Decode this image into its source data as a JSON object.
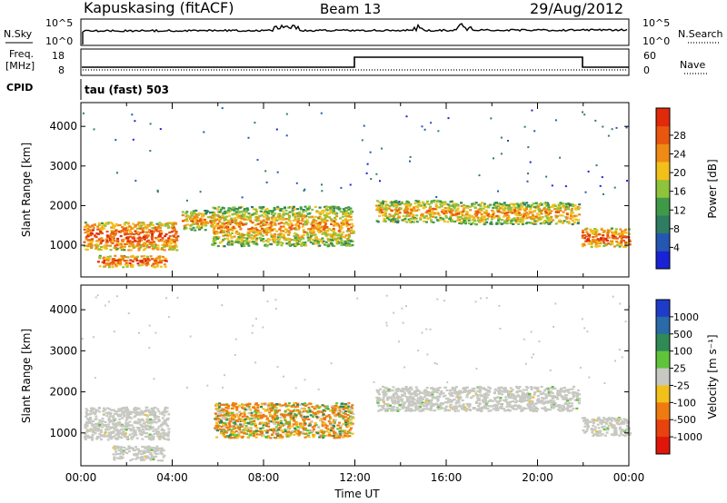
{
  "header": {
    "station": "Kapuskasing (fitACF)",
    "beam": "Beam 13",
    "date": "29/Aug/2012"
  },
  "strips": {
    "noise": {
      "left_label": "N.Sky",
      "left_ticks": [
        "10^5",
        "10^0"
      ],
      "right_label": "N.Search",
      "right_ticks": [
        "10^5",
        "10^0"
      ]
    },
    "freq": {
      "left_label_line1": "Freq.",
      "left_label_line2": "[MHz]",
      "left_ticks": [
        "18",
        "8"
      ],
      "right_label": "Nave",
      "right_ticks": [
        "60",
        "0"
      ]
    },
    "cpid": {
      "label": "CPID",
      "text": "tau (fast) 503"
    }
  },
  "chart_data": [
    {
      "type": "heatmap",
      "panel": "power",
      "ylabel": "Slant Range [km]",
      "xlabel": "",
      "ylim": [
        200,
        4600
      ],
      "xlim_hours": [
        0,
        24
      ],
      "y_ticks": [
        1000,
        2000,
        3000,
        4000
      ],
      "colorbar": {
        "label": "Power [dB]",
        "ticks": [
          "4",
          "8",
          "12",
          "16",
          "20",
          "24",
          "28"
        ],
        "colors": [
          "#1a22d6",
          "#2456b3",
          "#2f7c62",
          "#3f9a48",
          "#8fc33b",
          "#f2c01b",
          "#ef8a14",
          "#e8560f",
          "#e02a0a"
        ]
      },
      "regions": [
        {
          "x": [
            0.1,
            4.2
          ],
          "y": [
            900,
            1600
          ],
          "level": "high"
        },
        {
          "x": [
            0.7,
            3.7
          ],
          "y": [
            470,
            760
          ],
          "level": "high"
        },
        {
          "x": [
            4.4,
            5.7
          ],
          "y": [
            1400,
            1900
          ],
          "level": "medium"
        },
        {
          "x": [
            5.7,
            11.9
          ],
          "y": [
            1000,
            2000
          ],
          "level": "medium"
        },
        {
          "x": [
            12.9,
            16.2
          ],
          "y": [
            1600,
            2150
          ],
          "level": "medium"
        },
        {
          "x": [
            16.2,
            21.8
          ],
          "y": [
            1550,
            2100
          ],
          "level": "medium"
        },
        {
          "x": [
            21.9,
            24.0
          ],
          "y": [
            980,
            1450
          ],
          "level": "high"
        }
      ]
    },
    {
      "type": "heatmap",
      "panel": "velocity",
      "ylabel": "Slant Range [km]",
      "xlabel": "Time UT",
      "ylim": [
        200,
        4600
      ],
      "xlim_hours": [
        0,
        24
      ],
      "y_ticks": [
        1000,
        2000,
        3000,
        4000
      ],
      "x_ticks": [
        "00:00",
        "04:00",
        "08:00",
        "12:00",
        "16:00",
        "20:00",
        "00:00"
      ],
      "colorbar": {
        "label": "Velocity [m s⁻¹]",
        "ticks": [
          "1000",
          "500",
          "100",
          "25",
          "-25",
          "-100",
          "-500",
          "-1000"
        ],
        "colors": [
          "#1f3cc8",
          "#2a6aa8",
          "#2f8a56",
          "#5fc43a",
          "#c8c8c2",
          "#f2c01b",
          "#ef7a12",
          "#e8420f",
          "#e0160a"
        ]
      },
      "regions": [
        {
          "x": [
            0.1,
            3.8
          ],
          "y": [
            850,
            1650
          ],
          "level": "ground"
        },
        {
          "x": [
            1.3,
            3.6
          ],
          "y": [
            350,
            700
          ],
          "level": "ground"
        },
        {
          "x": [
            5.8,
            11.9
          ],
          "y": [
            900,
            1750
          ],
          "level": "negative"
        },
        {
          "x": [
            12.9,
            21.8
          ],
          "y": [
            1550,
            2150
          ],
          "level": "ground"
        },
        {
          "x": [
            21.9,
            24.0
          ],
          "y": [
            950,
            1400
          ],
          "level": "ground"
        }
      ]
    }
  ]
}
